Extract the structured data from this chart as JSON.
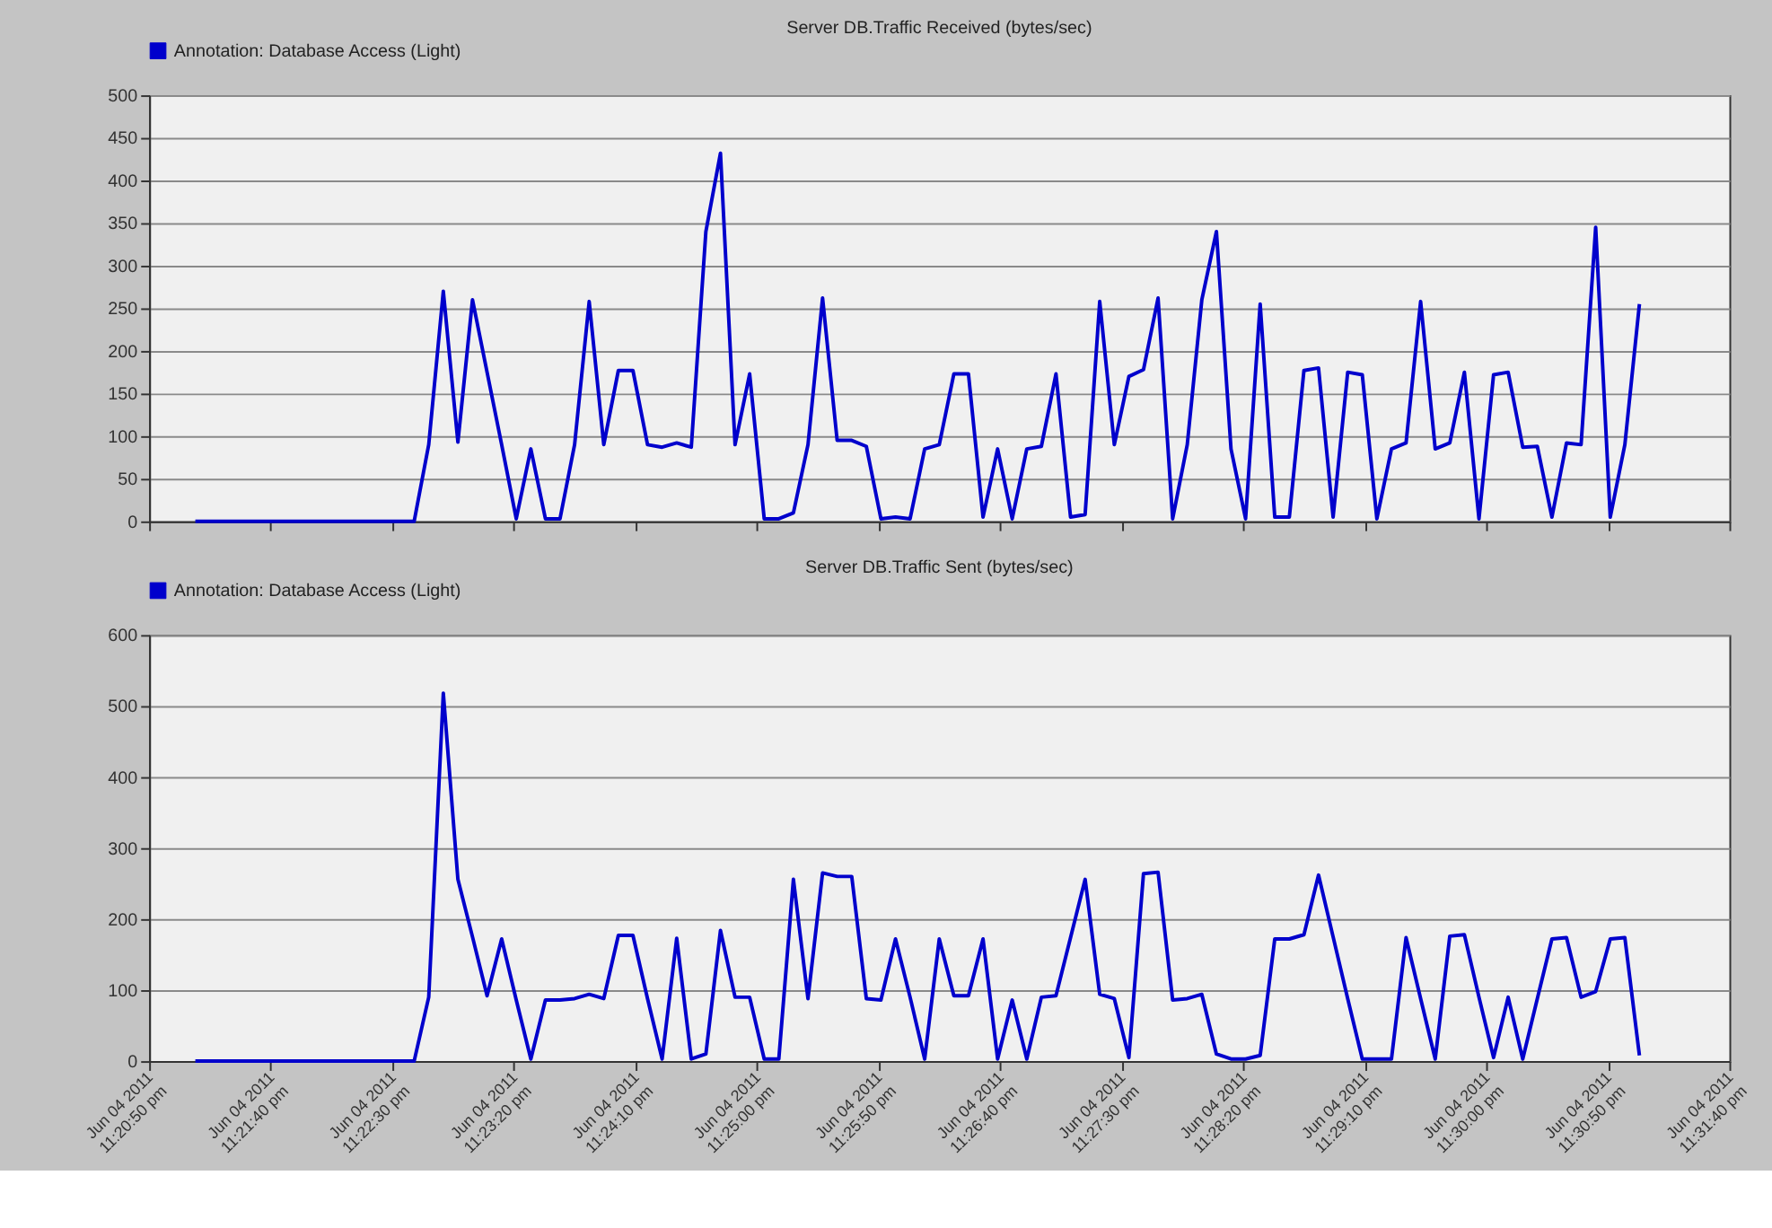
{
  "chart_data": [
    {
      "type": "line",
      "title": "Server DB.Traffic Received (bytes/sec)",
      "legend": "top left",
      "grid": "y",
      "tick_labels": "y",
      "line_style": "solid",
      "marker": "none",
      "x": [
        "2011-06-04T23:21:09",
        "2011-06-04T23:21:15",
        "2011-06-04T23:21:21",
        "2011-06-04T23:21:27",
        "2011-06-04T23:21:33",
        "2011-06-04T23:21:39",
        "2011-06-04T23:21:45",
        "2011-06-04T23:21:51",
        "2011-06-04T23:21:57",
        "2011-06-04T23:22:03",
        "2011-06-04T23:22:09",
        "2011-06-04T23:22:15",
        "2011-06-04T23:22:21",
        "2011-06-04T23:22:27",
        "2011-06-04T23:22:33",
        "2011-06-04T23:22:39",
        "2011-06-04T23:22:45",
        "2011-06-04T23:22:51",
        "2011-06-04T23:22:57",
        "2011-06-04T23:23:03",
        "2011-06-04T23:23:09",
        "2011-06-04T23:23:15",
        "2011-06-04T23:23:21",
        "2011-06-04T23:23:27",
        "2011-06-04T23:23:33",
        "2011-06-04T23:23:39",
        "2011-06-04T23:23:45",
        "2011-06-04T23:23:51",
        "2011-06-04T23:23:57",
        "2011-06-04T23:24:03",
        "2011-06-04T23:24:09",
        "2011-06-04T23:24:15",
        "2011-06-04T23:24:21",
        "2011-06-04T23:24:27",
        "2011-06-04T23:24:33",
        "2011-06-04T23:24:39",
        "2011-06-04T23:24:45",
        "2011-06-04T23:24:51",
        "2011-06-04T23:24:57",
        "2011-06-04T23:25:03",
        "2011-06-04T23:25:09",
        "2011-06-04T23:25:15",
        "2011-06-04T23:25:21",
        "2011-06-04T23:25:27",
        "2011-06-04T23:25:33",
        "2011-06-04T23:25:39",
        "2011-06-04T23:25:45",
        "2011-06-04T23:25:51",
        "2011-06-04T23:25:57",
        "2011-06-04T23:26:03",
        "2011-06-04T23:26:09",
        "2011-06-04T23:26:15",
        "2011-06-04T23:26:21",
        "2011-06-04T23:26:27",
        "2011-06-04T23:26:33",
        "2011-06-04T23:26:39",
        "2011-06-04T23:26:45",
        "2011-06-04T23:26:51",
        "2011-06-04T23:26:57",
        "2011-06-04T23:27:03",
        "2011-06-04T23:27:09",
        "2011-06-04T23:27:15",
        "2011-06-04T23:27:21",
        "2011-06-04T23:27:27",
        "2011-06-04T23:27:33",
        "2011-06-04T23:27:39",
        "2011-06-04T23:27:45",
        "2011-06-04T23:27:51",
        "2011-06-04T23:27:57",
        "2011-06-04T23:28:03",
        "2011-06-04T23:28:09",
        "2011-06-04T23:28:15",
        "2011-06-04T23:28:21",
        "2011-06-04T23:28:27",
        "2011-06-04T23:28:33",
        "2011-06-04T23:28:39",
        "2011-06-04T23:28:45",
        "2011-06-04T23:28:51",
        "2011-06-04T23:28:57",
        "2011-06-04T23:29:03",
        "2011-06-04T23:29:09",
        "2011-06-04T23:29:15",
        "2011-06-04T23:29:21",
        "2011-06-04T23:29:27",
        "2011-06-04T23:29:33",
        "2011-06-04T23:29:39",
        "2011-06-04T23:29:45",
        "2011-06-04T23:29:51",
        "2011-06-04T23:29:57",
        "2011-06-04T23:30:03",
        "2011-06-04T23:30:09",
        "2011-06-04T23:30:15",
        "2011-06-04T23:30:21",
        "2011-06-04T23:30:27",
        "2011-06-04T23:30:33",
        "2011-06-04T23:30:39",
        "2011-06-04T23:30:45",
        "2011-06-04T23:30:51",
        "2011-06-04T23:30:57",
        "2011-06-04T23:31:03"
      ],
      "xlim": [
        "2011-06-04T23:20:50",
        "2011-06-04T23:31:40"
      ],
      "xticks": [
        {
          "value": "2011-06-04T23:20:50",
          "label": null
        },
        {
          "value": "2011-06-04T23:21:40",
          "label": null
        },
        {
          "value": "2011-06-04T23:22:30",
          "label": null
        },
        {
          "value": "2011-06-04T23:23:20",
          "label": null
        },
        {
          "value": "2011-06-04T23:24:10",
          "label": null
        },
        {
          "value": "2011-06-04T23:25:00",
          "label": null
        },
        {
          "value": "2011-06-04T23:25:50",
          "label": null
        },
        {
          "value": "2011-06-04T23:26:40",
          "label": null
        },
        {
          "value": "2011-06-04T23:27:30",
          "label": null
        },
        {
          "value": "2011-06-04T23:28:20",
          "label": null
        },
        {
          "value": "2011-06-04T23:29:10",
          "label": null
        },
        {
          "value": "2011-06-04T23:30:00",
          "label": null
        },
        {
          "value": "2011-06-04T23:30:50",
          "label": null
        },
        {
          "value": "2011-06-04T23:31:40",
          "label": null
        }
      ],
      "ylim": [
        0,
        500
      ],
      "yticks": [
        0,
        50,
        100,
        150,
        200,
        250,
        300,
        350,
        400,
        450,
        500
      ],
      "series": [
        {
          "name": "Annotation: Database Access (Light)",
          "color": "#0000cc",
          "values": [
            0,
            0,
            0,
            0,
            0,
            0,
            0,
            0,
            0,
            0,
            0,
            0,
            0,
            0,
            0,
            0,
            90,
            270,
            93,
            260,
            175,
            90,
            3,
            85,
            3,
            3,
            90,
            258,
            90,
            177,
            177,
            90,
            87,
            92,
            87,
            340,
            432,
            90,
            173,
            3,
            3,
            10,
            90,
            262,
            95,
            95,
            88,
            3,
            5,
            3,
            85,
            90,
            173,
            173,
            5,
            85,
            3,
            85,
            88,
            173,
            5,
            8,
            258,
            90,
            170,
            178,
            262,
            3,
            90,
            260,
            340,
            85,
            3,
            255,
            5,
            5,
            177,
            180,
            5,
            175,
            172,
            3,
            85,
            92,
            258,
            85,
            92,
            175,
            3,
            172,
            175,
            87,
            88,
            5,
            92,
            90,
            345,
            5,
            90,
            255
          ]
        }
      ]
    },
    {
      "type": "line",
      "title": "Server DB.Traffic Sent (bytes/sec)",
      "legend": "top left",
      "grid": "y",
      "line_style": "solid",
      "marker": "none",
      "x": [
        "2011-06-04T23:21:09",
        "2011-06-04T23:21:15",
        "2011-06-04T23:21:21",
        "2011-06-04T23:21:27",
        "2011-06-04T23:21:33",
        "2011-06-04T23:21:39",
        "2011-06-04T23:21:45",
        "2011-06-04T23:21:51",
        "2011-06-04T23:21:57",
        "2011-06-04T23:22:03",
        "2011-06-04T23:22:09",
        "2011-06-04T23:22:15",
        "2011-06-04T23:22:21",
        "2011-06-04T23:22:27",
        "2011-06-04T23:22:33",
        "2011-06-04T23:22:39",
        "2011-06-04T23:22:45",
        "2011-06-04T23:22:51",
        "2011-06-04T23:22:57",
        "2011-06-04T23:23:03",
        "2011-06-04T23:23:09",
        "2011-06-04T23:23:15",
        "2011-06-04T23:23:21",
        "2011-06-04T23:23:27",
        "2011-06-04T23:23:33",
        "2011-06-04T23:23:39",
        "2011-06-04T23:23:45",
        "2011-06-04T23:23:51",
        "2011-06-04T23:23:57",
        "2011-06-04T23:24:03",
        "2011-06-04T23:24:09",
        "2011-06-04T23:24:15",
        "2011-06-04T23:24:21",
        "2011-06-04T23:24:27",
        "2011-06-04T23:24:33",
        "2011-06-04T23:24:39",
        "2011-06-04T23:24:45",
        "2011-06-04T23:24:51",
        "2011-06-04T23:24:57",
        "2011-06-04T23:25:03",
        "2011-06-04T23:25:09",
        "2011-06-04T23:25:15",
        "2011-06-04T23:25:21",
        "2011-06-04T23:25:27",
        "2011-06-04T23:25:33",
        "2011-06-04T23:25:39",
        "2011-06-04T23:25:45",
        "2011-06-04T23:25:51",
        "2011-06-04T23:25:57",
        "2011-06-04T23:26:03",
        "2011-06-04T23:26:09",
        "2011-06-04T23:26:15",
        "2011-06-04T23:26:21",
        "2011-06-04T23:26:27",
        "2011-06-04T23:26:33",
        "2011-06-04T23:26:39",
        "2011-06-04T23:26:45",
        "2011-06-04T23:26:51",
        "2011-06-04T23:26:57",
        "2011-06-04T23:27:03",
        "2011-06-04T23:27:09",
        "2011-06-04T23:27:15",
        "2011-06-04T23:27:21",
        "2011-06-04T23:27:27",
        "2011-06-04T23:27:33",
        "2011-06-04T23:27:39",
        "2011-06-04T23:27:45",
        "2011-06-04T23:27:51",
        "2011-06-04T23:27:57",
        "2011-06-04T23:28:03",
        "2011-06-04T23:28:09",
        "2011-06-04T23:28:15",
        "2011-06-04T23:28:21",
        "2011-06-04T23:28:27",
        "2011-06-04T23:28:33",
        "2011-06-04T23:28:39",
        "2011-06-04T23:28:45",
        "2011-06-04T23:28:51",
        "2011-06-04T23:28:57",
        "2011-06-04T23:29:03",
        "2011-06-04T23:29:09",
        "2011-06-04T23:29:15",
        "2011-06-04T23:29:21",
        "2011-06-04T23:29:27",
        "2011-06-04T23:29:33",
        "2011-06-04T23:29:39",
        "2011-06-04T23:29:45",
        "2011-06-04T23:29:51",
        "2011-06-04T23:29:57",
        "2011-06-04T23:30:03",
        "2011-06-04T23:30:09",
        "2011-06-04T23:30:15",
        "2011-06-04T23:30:21",
        "2011-06-04T23:30:27",
        "2011-06-04T23:30:33",
        "2011-06-04T23:30:39",
        "2011-06-04T23:30:45",
        "2011-06-04T23:30:51",
        "2011-06-04T23:30:57",
        "2011-06-04T23:31:03"
      ],
      "xlim": [
        "2011-06-04T23:20:50",
        "2011-06-04T23:31:40"
      ],
      "xticks": [
        {
          "value": "2011-06-04T23:20:50",
          "label": "Jun 04 2011\n11:20:50 pm"
        },
        {
          "value": "2011-06-04T23:21:40",
          "label": "Jun 04 2011\n11:21:40 pm"
        },
        {
          "value": "2011-06-04T23:22:30",
          "label": "Jun 04 2011\n11:22:30 pm"
        },
        {
          "value": "2011-06-04T23:23:20",
          "label": "Jun 04 2011\n11:23:20 pm"
        },
        {
          "value": "2011-06-04T23:24:10",
          "label": "Jun 04 2011\n11:24:10 pm"
        },
        {
          "value": "2011-06-04T23:25:00",
          "label": "Jun 04 2011\n11:25:00 pm"
        },
        {
          "value": "2011-06-04T23:25:50",
          "label": "Jun 04 2011\n11:25:50 pm"
        },
        {
          "value": "2011-06-04T23:26:40",
          "label": "Jun 04 2011\n11:26:40 pm"
        },
        {
          "value": "2011-06-04T23:27:30",
          "label": "Jun 04 2011\n11:27:30 pm"
        },
        {
          "value": "2011-06-04T23:28:20",
          "label": "Jun 04 2011\n11:28:20 pm"
        },
        {
          "value": "2011-06-04T23:29:10",
          "label": "Jun 04 2011\n11:29:10 pm"
        },
        {
          "value": "2011-06-04T23:30:00",
          "label": "Jun 04 2011\n11:30:00 pm"
        },
        {
          "value": "2011-06-04T23:30:50",
          "label": "Jun 04 2011\n11:30:50 pm"
        },
        {
          "value": "2011-06-04T23:31:40",
          "label": "Jun 04 2011\n11:31:40 pm"
        }
      ],
      "ylim": [
        0,
        600
      ],
      "yticks": [
        0,
        100,
        200,
        300,
        400,
        500,
        600
      ],
      "series": [
        {
          "name": "Annotation: Database Access (Light)",
          "color": "#0000cc",
          "values": [
            0,
            0,
            0,
            0,
            0,
            0,
            0,
            0,
            0,
            0,
            0,
            0,
            0,
            0,
            0,
            0,
            90,
            518,
            256,
            175,
            92,
            172,
            86,
            3,
            86,
            86,
            88,
            94,
            88,
            177,
            177,
            88,
            3,
            173,
            3,
            10,
            184,
            90,
            90,
            3,
            3,
            256,
            88,
            265,
            260,
            260,
            88,
            86,
            172,
            90,
            3,
            172,
            92,
            92,
            172,
            3,
            86,
            3,
            90,
            92,
            174,
            256,
            94,
            88,
            5,
            264,
            266,
            86,
            88,
            94,
            10,
            3,
            3,
            8,
            172,
            172,
            178,
            262,
            175,
            88,
            3,
            3,
            3,
            174,
            88,
            3,
            176,
            178,
            90,
            5,
            90,
            3,
            88,
            172,
            174,
            90,
            98,
            172,
            174,
            8
          ]
        }
      ]
    }
  ]
}
